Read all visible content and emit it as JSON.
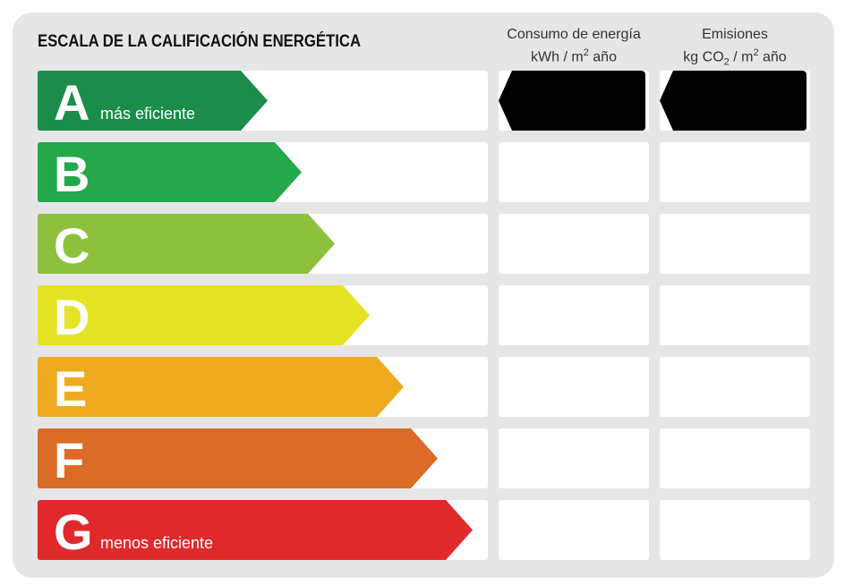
{
  "title": "ESCALA DE LA CALIFICACIÓN ENERGÉTICA",
  "columns": {
    "consumo": {
      "line1": "Consumo de energía",
      "line2_pre": "kWh / m",
      "line2_sup": "2",
      "line2_post": " año"
    },
    "emisiones": {
      "line1": "Emisiones",
      "line2_pre": "kg CO",
      "line2_sub": "2",
      "line2_mid": " / m",
      "line2_sup": "2",
      "line2_post": " año"
    }
  },
  "ratings": [
    {
      "letter": "A",
      "label": "más eficiente",
      "color": "#1b8c4a"
    },
    {
      "letter": "B",
      "label": "",
      "color": "#24a84b"
    },
    {
      "letter": "C",
      "label": "",
      "color": "#8dc03d"
    },
    {
      "letter": "D",
      "label": "",
      "color": "#e4e424"
    },
    {
      "letter": "E",
      "label": "",
      "color": "#efab1f"
    },
    {
      "letter": "F",
      "label": "",
      "color": "#dc6b27"
    },
    {
      "letter": "G",
      "label": "menos eficiente",
      "color": "#e0292b"
    }
  ],
  "indicator": {
    "consumo_rating": "A",
    "emisiones_rating": "A",
    "color": "#000000"
  }
}
